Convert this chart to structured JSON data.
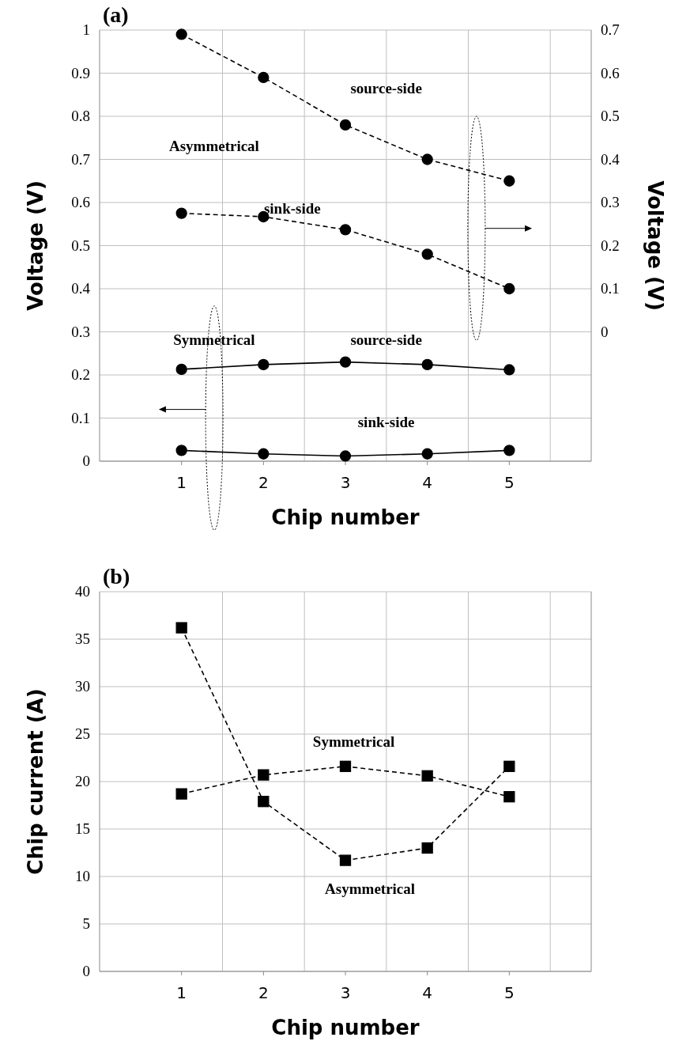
{
  "chart_data": [
    {
      "type": "line",
      "title": "(a)",
      "xlabel": "Chip number",
      "ylabel": "Voltage (V)",
      "y2label": "Voltage (V)",
      "x": [
        1,
        2,
        3,
        4,
        5
      ],
      "xlim": [
        0,
        6
      ],
      "xticks": [
        1,
        2,
        3,
        4,
        5
      ],
      "ylim": [
        0,
        1
      ],
      "yticks": [
        0,
        0.1,
        0.2,
        0.3,
        0.4,
        0.5,
        0.6,
        0.7,
        0.8,
        0.9,
        1
      ],
      "y2lim": [
        -0.3,
        0.7
      ],
      "y2ticks": [
        0,
        0.1,
        0.2,
        0.3,
        0.4,
        0.5,
        0.6,
        0.7
      ],
      "grid": true,
      "series": [
        {
          "color": "#000000",
          "axis": "y2",
          "marker": "circle",
          "line_style": "dashed",
          "values": [
            0.69,
            0.59,
            0.48,
            0.4,
            0.35
          ]
        },
        {
          "color": "#000000",
          "axis": "y2",
          "marker": "circle",
          "line_style": "dashed",
          "values": [
            0.275,
            0.267,
            0.237,
            0.18,
            0.1
          ]
        },
        {
          "color": "#000000",
          "marker": "circle",
          "line_style": "solid",
          "values": [
            0.213,
            0.224,
            0.23,
            0.224,
            0.212
          ]
        },
        {
          "color": "#000000",
          "marker": "circle",
          "line_style": "solid",
          "values": [
            0.025,
            0.017,
            0.012,
            0.017,
            0.025
          ]
        }
      ],
      "annotations": [
        "Asymmetrical",
        "source-side",
        "sink-side",
        "Symmetrical",
        "source-side",
        "sink-side"
      ]
    },
    {
      "type": "line",
      "title": "(b)",
      "xlabel": "Chip number",
      "ylabel": "Chip current (A)",
      "x": [
        1,
        2,
        3,
        4,
        5
      ],
      "xlim": [
        0,
        6
      ],
      "xticks": [
        1,
        2,
        3,
        4,
        5
      ],
      "ylim": [
        0,
        40
      ],
      "yticks": [
        0,
        5,
        10,
        15,
        20,
        25,
        30,
        35,
        40
      ],
      "grid": true,
      "series": [
        {
          "color": "#000000",
          "marker": "square",
          "line_style": "dashed",
          "values": [
            18.7,
            20.7,
            21.6,
            20.6,
            18.4
          ]
        },
        {
          "color": "#000000",
          "marker": "square",
          "line_style": "dashed",
          "values": [
            36.2,
            17.9,
            11.7,
            13.0,
            21.6
          ]
        }
      ],
      "annotations": [
        "Symmetrical",
        "Asymmetrical"
      ]
    }
  ]
}
